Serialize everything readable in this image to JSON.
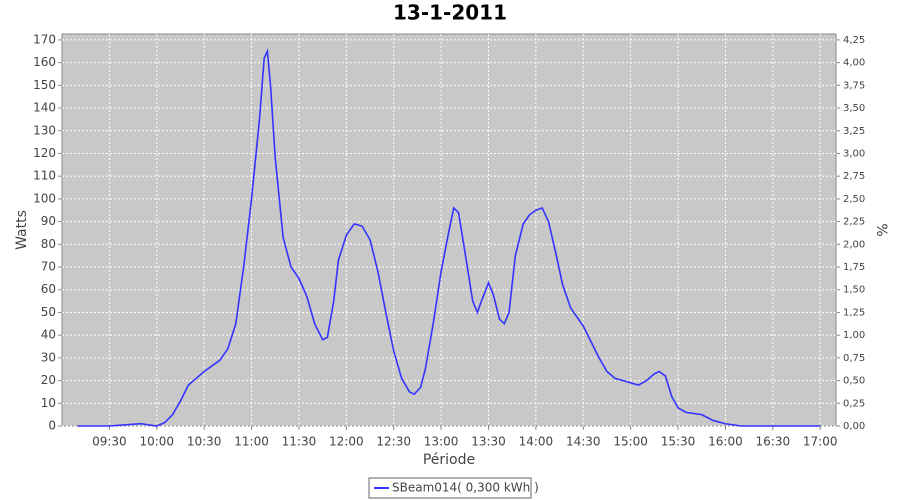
{
  "chart_data": {
    "type": "line",
    "title": "13-1-2011",
    "x_label": "Période",
    "y_label": "Watts",
    "y2_label": "%",
    "x": [
      "09:10",
      "09:30",
      "09:40",
      "09:50",
      "09:55",
      "10:00",
      "10:05",
      "10:10",
      "10:15",
      "10:20",
      "10:25",
      "10:30",
      "10:40",
      "10:45",
      "10:50",
      "10:55",
      "11:00",
      "11:05",
      "11:08",
      "11:10",
      "11:12",
      "11:15",
      "11:20",
      "11:25",
      "11:30",
      "11:35",
      "11:40",
      "11:45",
      "11:48",
      "11:52",
      "11:55",
      "12:00",
      "12:05",
      "12:10",
      "12:15",
      "12:20",
      "12:25",
      "12:30",
      "12:35",
      "12:40",
      "12:43",
      "12:47",
      "12:50",
      "12:55",
      "13:00",
      "13:05",
      "13:08",
      "13:11",
      "13:15",
      "13:20",
      "13:23",
      "13:25",
      "13:30",
      "13:33",
      "13:37",
      "13:40",
      "13:43",
      "13:47",
      "13:52",
      "13:56",
      "14:00",
      "14:04",
      "14:08",
      "14:12",
      "14:17",
      "14:22",
      "14:30",
      "14:35",
      "14:40",
      "14:45",
      "14:50",
      "15:00",
      "15:05",
      "15:10",
      "15:15",
      "15:18",
      "15:22",
      "15:26",
      "15:30",
      "15:35",
      "15:45",
      "15:52",
      "16:00",
      "16:10",
      "16:30",
      "17:00"
    ],
    "series": [
      {
        "name": "SBeam014( 0,300 kWh )",
        "color": "#3333ff",
        "values": [
          0,
          0,
          0.5,
          1,
          0.5,
          0,
          1.5,
          5,
          11,
          18,
          21,
          24,
          29,
          34,
          45,
          70,
          100,
          135,
          162,
          165,
          150,
          118,
          83,
          70,
          65,
          57,
          45,
          38,
          39,
          55,
          73,
          84,
          89,
          88,
          82,
          68,
          50,
          33,
          21,
          15,
          14,
          17,
          25,
          45,
          68,
          86,
          96,
          94,
          77,
          55,
          50,
          54,
          63,
          58,
          47,
          45,
          50,
          75,
          89,
          93,
          95,
          96,
          90,
          78,
          62,
          52,
          44,
          37,
          30,
          24,
          21,
          19,
          18,
          20,
          23,
          24,
          22,
          13,
          8,
          6,
          5,
          2.5,
          1,
          0,
          0,
          0
        ]
      }
    ],
    "xlim": [
      "09:00",
      "17:10"
    ],
    "xticks": [
      "09:30",
      "10:00",
      "10:30",
      "11:00",
      "11:30",
      "12:00",
      "12:30",
      "13:00",
      "13:30",
      "14:00",
      "14:30",
      "15:00",
      "15:30",
      "16:00",
      "16:30",
      "17:00"
    ],
    "ylim": [
      0,
      172.6
    ],
    "yticks": [
      0,
      10,
      20,
      30,
      40,
      50,
      60,
      70,
      80,
      90,
      100,
      110,
      120,
      130,
      140,
      150,
      160,
      170
    ],
    "y2lim": [
      0,
      4.315
    ],
    "y2ticks": [
      {
        "value": 0,
        "label": "0,00"
      },
      {
        "value": 0.25,
        "label": "0,25"
      },
      {
        "value": 0.5,
        "label": "0,50"
      },
      {
        "value": 0.75,
        "label": "0,75"
      },
      {
        "value": 1,
        "label": "1,00"
      },
      {
        "value": 1.25,
        "label": "1,25"
      },
      {
        "value": 1.5,
        "label": "1,50"
      },
      {
        "value": 1.75,
        "label": "1,75"
      },
      {
        "value": 2,
        "label": "2,00"
      },
      {
        "value": 2.25,
        "label": "2,25"
      },
      {
        "value": 2.5,
        "label": "2,50"
      },
      {
        "value": 2.75,
        "label": "2,75"
      },
      {
        "value": 3,
        "label": "3,00"
      },
      {
        "value": 3.25,
        "label": "3,25"
      },
      {
        "value": 3.5,
        "label": "3,50"
      },
      {
        "value": 3.75,
        "label": "3,75"
      },
      {
        "value": 4,
        "label": "4,00"
      },
      {
        "value": 4.25,
        "label": "4,25"
      }
    ],
    "grid": true,
    "plot_background": "#c8c8c8",
    "legend": "bottom"
  }
}
